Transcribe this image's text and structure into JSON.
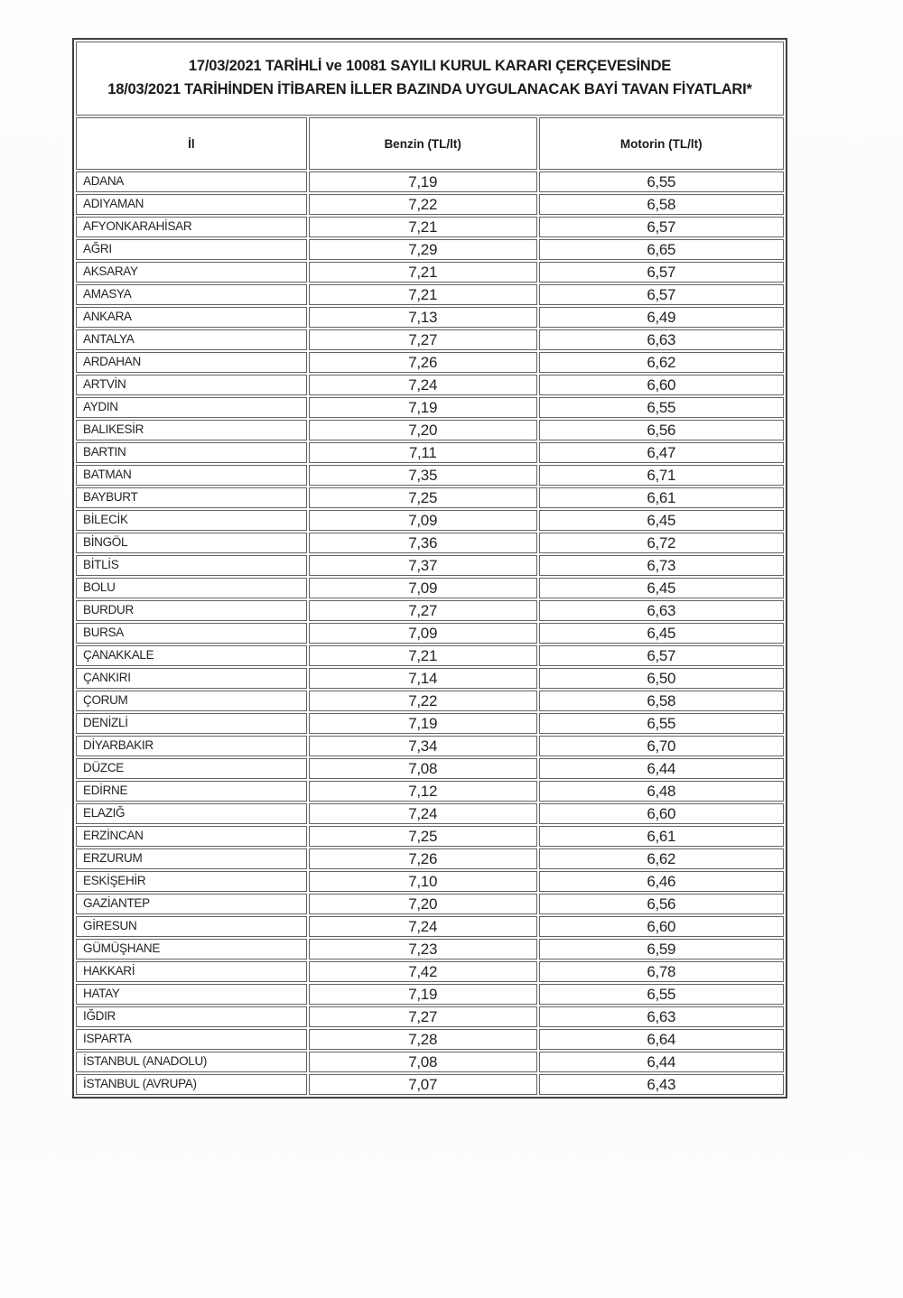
{
  "title": {
    "line1": "17/03/2021 TARİHLİ ve 10081 SAYILI KURUL KARARI ÇERÇEVESİNDE",
    "line2": "18/03/2021 TARİHİNDEN İTİBAREN İLLER BAZINDA UYGULANACAK BAYİ TAVAN FİYATLARI*"
  },
  "table": {
    "headers": [
      "İl",
      "Benzin (TL/lt)",
      "Motorin (TL/lt)"
    ],
    "rows": [
      [
        "ADANA",
        "7,19",
        "6,55"
      ],
      [
        "ADIYAMAN",
        "7,22",
        "6,58"
      ],
      [
        "AFYONKARAHİSAR",
        "7,21",
        "6,57"
      ],
      [
        "AĞRI",
        "7,29",
        "6,65"
      ],
      [
        "AKSARAY",
        "7,21",
        "6,57"
      ],
      [
        "AMASYA",
        "7,21",
        "6,57"
      ],
      [
        "ANKARA",
        "7,13",
        "6,49"
      ],
      [
        "ANTALYA",
        "7,27",
        "6,63"
      ],
      [
        "ARDAHAN",
        "7,26",
        "6,62"
      ],
      [
        "ARTVİN",
        "7,24",
        "6,60"
      ],
      [
        "AYDIN",
        "7,19",
        "6,55"
      ],
      [
        "BALIKESİR",
        "7,20",
        "6,56"
      ],
      [
        "BARTIN",
        "7,11",
        "6,47"
      ],
      [
        "BATMAN",
        "7,35",
        "6,71"
      ],
      [
        "BAYBURT",
        "7,25",
        "6,61"
      ],
      [
        "BİLECİK",
        "7,09",
        "6,45"
      ],
      [
        "BİNGÖL",
        "7,36",
        "6,72"
      ],
      [
        "BİTLİS",
        "7,37",
        "6,73"
      ],
      [
        "BOLU",
        "7,09",
        "6,45"
      ],
      [
        "BURDUR",
        "7,27",
        "6,63"
      ],
      [
        "BURSA",
        "7,09",
        "6,45"
      ],
      [
        "ÇANAKKALE",
        "7,21",
        "6,57"
      ],
      [
        "ÇANKIRI",
        "7,14",
        "6,50"
      ],
      [
        "ÇORUM",
        "7,22",
        "6,58"
      ],
      [
        "DENİZLİ",
        "7,19",
        "6,55"
      ],
      [
        "DİYARBAKIR",
        "7,34",
        "6,70"
      ],
      [
        "DÜZCE",
        "7,08",
        "6,44"
      ],
      [
        "EDİRNE",
        "7,12",
        "6,48"
      ],
      [
        "ELAZIĞ",
        "7,24",
        "6,60"
      ],
      [
        "ERZİNCAN",
        "7,25",
        "6,61"
      ],
      [
        "ERZURUM",
        "7,26",
        "6,62"
      ],
      [
        "ESKİŞEHİR",
        "7,10",
        "6,46"
      ],
      [
        "GAZİANTEP",
        "7,20",
        "6,56"
      ],
      [
        "GİRESUN",
        "7,24",
        "6,60"
      ],
      [
        "GÜMÜŞHANE",
        "7,23",
        "6,59"
      ],
      [
        "HAKKARİ",
        "7,42",
        "6,78"
      ],
      [
        "HATAY",
        "7,19",
        "6,55"
      ],
      [
        "IĞDIR",
        "7,27",
        "6,63"
      ],
      [
        "ISPARTA",
        "7,28",
        "6,64"
      ],
      [
        "İSTANBUL (ANADOLU)",
        "7,08",
        "6,44"
      ],
      [
        "İSTANBUL (AVRUPA)",
        "7,07",
        "6,43"
      ]
    ]
  }
}
